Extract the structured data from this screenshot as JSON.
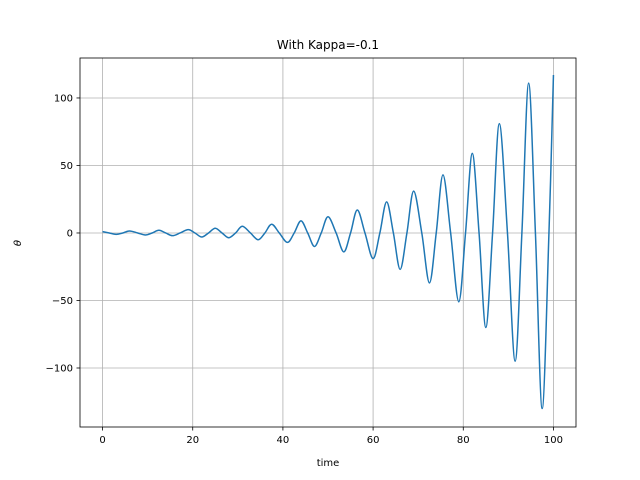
{
  "chart_data": {
    "type": "line",
    "title": "With Kappa=-0.1",
    "x_label": "time",
    "y_label": "θ",
    "x": [
      0,
      1.5,
      3,
      4.5,
      6,
      7.8,
      9.5,
      11,
      12.5,
      14,
      15.5,
      17.2,
      19,
      20.5,
      22,
      23.5,
      25,
      26.5,
      28,
      29.5,
      31,
      32.8,
      34.5,
      36,
      37.5,
      39.2,
      41,
      42.5,
      44,
      45.5,
      47,
      48.5,
      50,
      51.8,
      53.5,
      55,
      56.5,
      58.2,
      60,
      61.5,
      63,
      64.5,
      66,
      67.5,
      69,
      70.8,
      72.5,
      74,
      75.5,
      77.2,
      79,
      80.5,
      82,
      83.5,
      85,
      86.5,
      88,
      89.8,
      91.5,
      93,
      94.5,
      96,
      97.5,
      99,
      100
    ],
    "series": [
      {
        "color": "#1f77b4",
        "values": [
          1,
          0,
          -1,
          0,
          1.5,
          0,
          -1.5,
          0,
          2,
          0,
          -2,
          0,
          2.5,
          0,
          -3,
          0,
          3.5,
          0,
          -3.5,
          0,
          5,
          0,
          -5,
          0,
          6.5,
          0,
          -7,
          0,
          9,
          0,
          -10,
          0,
          12,
          0,
          -14,
          0,
          17,
          0,
          -19,
          0,
          23,
          0,
          -27,
          0,
          31,
          0,
          -37,
          0,
          43,
          0,
          -51,
          0,
          59,
          0,
          -70,
          0,
          81,
          0,
          -95,
          0,
          111,
          0,
          -130,
          0,
          117
        ]
      }
    ],
    "xlim": [
      -5,
      105
    ],
    "ylim": [
      -143.7,
      129.6
    ],
    "xticks": [
      0,
      20,
      40,
      60,
      80,
      100
    ],
    "yticks": [
      {
        "value": -100,
        "label": "−100"
      },
      {
        "value": -50,
        "label": "−50"
      },
      0,
      50,
      100
    ],
    "grid": true
  }
}
